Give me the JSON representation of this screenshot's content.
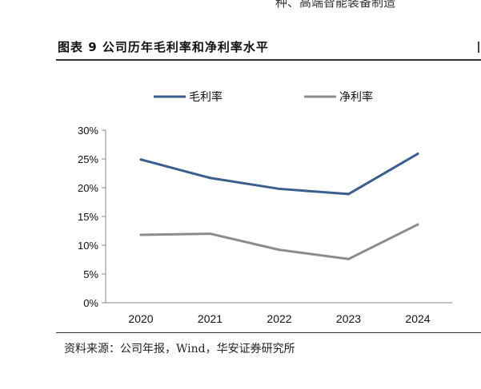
{
  "header": {
    "top_fragment": "种、高端智能装备制造"
  },
  "figure": {
    "title": "图表 9 公司历年毛利率和净利率水平",
    "source_label": "资料来源：",
    "source_text": "公司年报，Wind，华安证券研究所"
  },
  "chart_data": {
    "type": "line",
    "title": "",
    "xlabel": "",
    "ylabel": "",
    "categories": [
      "2020",
      "2021",
      "2022",
      "2023",
      "2024"
    ],
    "y_ticks": [
      "0%",
      "5%",
      "10%",
      "15%",
      "20%",
      "25%",
      "30%"
    ],
    "ylim": [
      0,
      30
    ],
    "grid": false,
    "legend_position": "top",
    "series": [
      {
        "name": "毛利率",
        "color": "#3a5f8f",
        "values": [
          24.9,
          21.7,
          19.8,
          18.9,
          25.9
        ]
      },
      {
        "name": "净利率",
        "color": "#8c8c8c",
        "values": [
          11.8,
          12.0,
          9.2,
          7.6,
          13.6
        ]
      }
    ]
  }
}
